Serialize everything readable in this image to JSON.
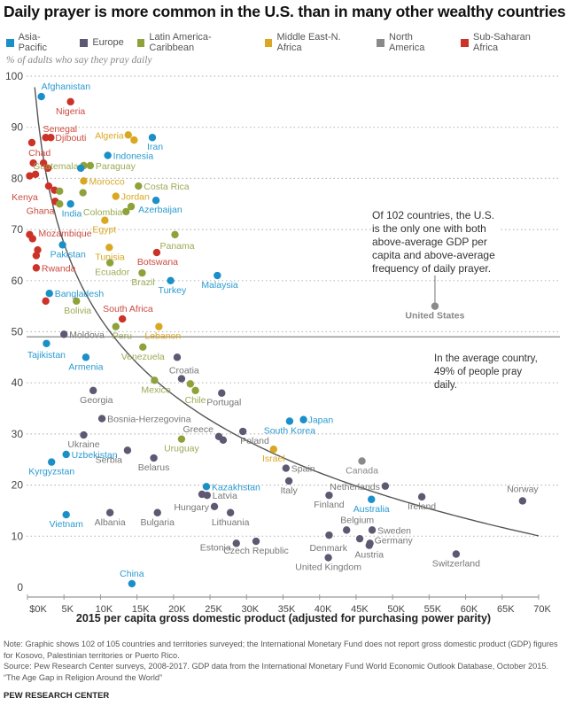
{
  "title": "Daily prayer is more common in the U.S. than in many other wealthy countries",
  "legend": [
    {
      "label": "Asia-Pacific",
      "color": "#1a8fc8"
    },
    {
      "label": "Europe",
      "color": "#5e5872"
    },
    {
      "label": "Latin America-Caribbean",
      "color": "#8ea23c"
    },
    {
      "label": "Middle East-N. Africa",
      "color": "#d9a722"
    },
    {
      "label": "North America",
      "color": "#8a8a8a"
    },
    {
      "label": "Sub-Saharan Africa",
      "color": "#cc3227"
    }
  ],
  "y_axis_caption": "% of adults who say they pray daily",
  "annotation_us": "Of 102 countries, the U.S. is the only one with both above-average GDP per capita and above-average frequency of daily prayer.",
  "annotation_avg": "In the average country, 49% of people pray daily.",
  "note": "Note: Graphic shows 102 of 105 countries and territories surveyed; the International Monetary Fund does not report gross domestic product (GDP) figures for Kosovo, Palestinian territories or Puerto Rico.",
  "source": "Source: Pew Research Center surveys, 2008-2017. GDP data from the International Monetary Fund World Economic Outlook Database, October 2015.",
  "report": "“The Age Gap in Religion Around the World”",
  "brand": "PEW RESEARCH CENTER",
  "chart_data": {
    "type": "scatter",
    "title": "Daily prayer is more common in the U.S. than in many other wealthy countries",
    "xlabel": "2015 per capita gross domestic product (adjusted for purchasing power parity)",
    "ylabel": "% of adults who say they pray daily",
    "xlim": [
      0,
      70
    ],
    "ylim": [
      0,
      100
    ],
    "x_unit": "thousand USD",
    "x_ticks": [
      "$0K",
      "5K",
      "10K",
      "15K",
      "20K",
      "25K",
      "30K",
      "35K",
      "40K",
      "45K",
      "50K",
      "55K",
      "60K",
      "65K",
      "70K"
    ],
    "y_ticks": [
      "0",
      "10",
      "20",
      "30",
      "40",
      "50",
      "60",
      "70",
      "80",
      "90",
      "100"
    ],
    "grid": "horizontal dotted",
    "reference_line": {
      "label": "Average",
      "y": 49
    },
    "trend": "fitted decreasing curve",
    "regions": {
      "AP": "Asia-Pacific",
      "EU": "Europe",
      "LA": "Latin America-Caribbean",
      "ME": "Middle East-N. Africa",
      "NA": "North America",
      "SA": "Sub-Saharan Africa"
    },
    "points": [
      {
        "name": "Afghanistan",
        "region": "AP",
        "x": 1.9,
        "y": 96,
        "label": true
      },
      {
        "name": "Nigeria",
        "region": "SA",
        "x": 5.9,
        "y": 95,
        "label": true
      },
      {
        "name": "Senegal",
        "region": "SA",
        "x": 2.5,
        "y": 88,
        "label": true
      },
      {
        "name": "Djibouti",
        "region": "SA",
        "x": 3.2,
        "y": 88,
        "label": true
      },
      {
        "name": "",
        "region": "SA",
        "x": 0.6,
        "y": 87,
        "label": false
      },
      {
        "name": "Algeria",
        "region": "ME",
        "x": 13.8,
        "y": 88.5,
        "label": true
      },
      {
        "name": "",
        "region": "ME",
        "x": 14.6,
        "y": 87.5,
        "label": false
      },
      {
        "name": "Iran",
        "region": "AP",
        "x": 17.1,
        "y": 88,
        "label": true
      },
      {
        "name": "Chad",
        "region": "SA",
        "x": 2.2,
        "y": 83,
        "label": true
      },
      {
        "name": "",
        "region": "SA",
        "x": 0.8,
        "y": 83,
        "label": false
      },
      {
        "name": "",
        "region": "SA",
        "x": 2.8,
        "y": 82,
        "label": false
      },
      {
        "name": "Guatemala",
        "region": "LA",
        "x": 7.7,
        "y": 82.5,
        "label": true
      },
      {
        "name": "Indonesia",
        "region": "AP",
        "x": 11.0,
        "y": 84.5,
        "label": true
      },
      {
        "name": "Paraguay",
        "region": "LA",
        "x": 8.6,
        "y": 82.5,
        "label": true
      },
      {
        "name": "",
        "region": "AP",
        "x": 7.3,
        "y": 82,
        "label": false
      },
      {
        "name": "",
        "region": "SA",
        "x": 0.3,
        "y": 80.5,
        "label": false
      },
      {
        "name": "",
        "region": "SA",
        "x": 1.1,
        "y": 80.8,
        "label": false
      },
      {
        "name": "Morocco",
        "region": "ME",
        "x": 7.7,
        "y": 79.5,
        "label": true
      },
      {
        "name": "Costa Rica",
        "region": "LA",
        "x": 15.2,
        "y": 78.5,
        "label": true
      },
      {
        "name": "Kenya",
        "region": "SA",
        "x": 2.9,
        "y": 78.5,
        "label": true
      },
      {
        "name": "",
        "region": "SA",
        "x": 3.7,
        "y": 77.7,
        "label": false
      },
      {
        "name": "",
        "region": "LA",
        "x": 4.4,
        "y": 77.5,
        "label": false
      },
      {
        "name": "",
        "region": "LA",
        "x": 7.6,
        "y": 77.2,
        "label": false
      },
      {
        "name": "Jordan",
        "region": "ME",
        "x": 12.1,
        "y": 76.5,
        "label": true
      },
      {
        "name": "Azerbaijan",
        "region": "AP",
        "x": 17.6,
        "y": 75.7,
        "label": true
      },
      {
        "name": "Ghana",
        "region": "SA",
        "x": 3.8,
        "y": 75.5,
        "label": true
      },
      {
        "name": "",
        "region": "LA",
        "x": 4.4,
        "y": 75,
        "label": false
      },
      {
        "name": "India",
        "region": "AP",
        "x": 5.9,
        "y": 75,
        "label": true
      },
      {
        "name": "Colombia",
        "region": "LA",
        "x": 13.5,
        "y": 73.5,
        "label": true
      },
      {
        "name": "",
        "region": "LA",
        "x": 14.2,
        "y": 74.5,
        "label": false
      },
      {
        "name": "Egypt",
        "region": "ME",
        "x": 10.6,
        "y": 71.8,
        "label": true
      },
      {
        "name": "Mozambique",
        "region": "SA",
        "x": 0.3,
        "y": 69,
        "label": true
      },
      {
        "name": "",
        "region": "SA",
        "x": 0.7,
        "y": 68.2,
        "label": false
      },
      {
        "name": "Panama",
        "region": "LA",
        "x": 20.2,
        "y": 69,
        "label": true
      },
      {
        "name": "Pakistan",
        "region": "AP",
        "x": 4.8,
        "y": 67,
        "label": true
      },
      {
        "name": "",
        "region": "SA",
        "x": 1.4,
        "y": 66,
        "label": false
      },
      {
        "name": "",
        "region": "SA",
        "x": 1.2,
        "y": 64.9,
        "label": false
      },
      {
        "name": "Tunisia",
        "region": "ME",
        "x": 11.2,
        "y": 66.5,
        "label": true
      },
      {
        "name": "Botswana",
        "region": "SA",
        "x": 17.7,
        "y": 65.5,
        "label": true
      },
      {
        "name": "Rwanda",
        "region": "SA",
        "x": 1.2,
        "y": 62.5,
        "label": true
      },
      {
        "name": "Ecuador",
        "region": "LA",
        "x": 11.3,
        "y": 63.5,
        "label": true
      },
      {
        "name": "Brazil",
        "region": "LA",
        "x": 15.7,
        "y": 61.5,
        "label": true
      },
      {
        "name": "Turkey",
        "region": "AP",
        "x": 19.6,
        "y": 60,
        "label": true
      },
      {
        "name": "Malaysia",
        "region": "AP",
        "x": 26.0,
        "y": 61,
        "label": true
      },
      {
        "name": "Bangladesh",
        "region": "AP",
        "x": 3.0,
        "y": 57.5,
        "label": true
      },
      {
        "name": "",
        "region": "SA",
        "x": 2.5,
        "y": 56,
        "label": false
      },
      {
        "name": "Bolivia",
        "region": "LA",
        "x": 6.7,
        "y": 56,
        "label": true
      },
      {
        "name": "South Africa",
        "region": "SA",
        "x": 13.0,
        "y": 52.5,
        "label": true
      },
      {
        "name": "Peru",
        "region": "LA",
        "x": 12.1,
        "y": 51,
        "label": true
      },
      {
        "name": "Lebanon",
        "region": "ME",
        "x": 18.0,
        "y": 51,
        "label": true
      },
      {
        "name": "Moldova",
        "region": "EU",
        "x": 5.0,
        "y": 49.5,
        "label": true
      },
      {
        "name": "United States",
        "region": "NA",
        "x": 55.8,
        "y": 55,
        "label": true
      },
      {
        "name": "Tajikistan",
        "region": "AP",
        "x": 2.6,
        "y": 47.7,
        "label": true
      },
      {
        "name": "Venezuela",
        "region": "LA",
        "x": 15.8,
        "y": 47,
        "label": true
      },
      {
        "name": "Armenia",
        "region": "AP",
        "x": 8.0,
        "y": 45,
        "label": true
      },
      {
        "name": "",
        "region": "EU",
        "x": 20.5,
        "y": 45,
        "label": false
      },
      {
        "name": "Croatia",
        "region": "EU",
        "x": 21.1,
        "y": 40.8,
        "label": true
      },
      {
        "name": "Mexico",
        "region": "LA",
        "x": 17.4,
        "y": 40.5,
        "label": true
      },
      {
        "name": "",
        "region": "LA",
        "x": 22.3,
        "y": 39.8,
        "label": false
      },
      {
        "name": "Chile",
        "region": "LA",
        "x": 23.0,
        "y": 38.5,
        "label": true
      },
      {
        "name": "Portulal",
        "region": "EU",
        "x": 26.6,
        "y": 38,
        "label": true
      },
      {
        "name": "Georgia",
        "region": "EU",
        "x": 9.0,
        "y": 38.5,
        "label": true
      },
      {
        "name": "Bosnia-Herzegovina",
        "region": "EU",
        "x": 10.2,
        "y": 33,
        "label": true
      },
      {
        "name": "Japan",
        "region": "AP",
        "x": 37.8,
        "y": 32.8,
        "label": true
      },
      {
        "name": "South Korea",
        "region": "AP",
        "x": 35.9,
        "y": 32.5,
        "label": true
      },
      {
        "name": "Greece",
        "region": "EU",
        "x": 26.2,
        "y": 29.5,
        "label": true
      },
      {
        "name": "",
        "region": "EU",
        "x": 26.8,
        "y": 28.8,
        "label": false
      },
      {
        "name": "Poland",
        "region": "EU",
        "x": 29.5,
        "y": 30.5,
        "label": true
      },
      {
        "name": "Ukraine",
        "region": "EU",
        "x": 7.7,
        "y": 29.8,
        "label": true
      },
      {
        "name": "Uruguay",
        "region": "LA",
        "x": 21.1,
        "y": 29,
        "label": true
      },
      {
        "name": "Israel",
        "region": "ME",
        "x": 33.7,
        "y": 27,
        "label": true
      },
      {
        "name": "Uzbekistan",
        "region": "AP",
        "x": 5.3,
        "y": 26,
        "label": true
      },
      {
        "name": "Serbia",
        "region": "EU",
        "x": 13.7,
        "y": 26.8,
        "label": true
      },
      {
        "name": "Belarus",
        "region": "EU",
        "x": 17.3,
        "y": 25.3,
        "label": true
      },
      {
        "name": "Kyrgyzstan",
        "region": "AP",
        "x": 3.3,
        "y": 24.5,
        "label": true
      },
      {
        "name": "Canada",
        "region": "NA",
        "x": 45.8,
        "y": 24.7,
        "label": true
      },
      {
        "name": "Spain",
        "region": "EU",
        "x": 35.4,
        "y": 23.3,
        "label": true
      },
      {
        "name": "Italy",
        "region": "EU",
        "x": 35.8,
        "y": 20.8,
        "label": true
      },
      {
        "name": "Netherlands",
        "region": "EU",
        "x": 49.0,
        "y": 19.8,
        "label": true
      },
      {
        "name": "Kazakhstan",
        "region": "AP",
        "x": 24.5,
        "y": 19.7,
        "label": true
      },
      {
        "name": "",
        "region": "EU",
        "x": 23.9,
        "y": 18.2,
        "label": false
      },
      {
        "name": "Latvia",
        "region": "EU",
        "x": 24.6,
        "y": 18,
        "label": true
      },
      {
        "name": "Ireland",
        "region": "EU",
        "x": 54.0,
        "y": 17.7,
        "label": true
      },
      {
        "name": "Norway",
        "region": "EU",
        "x": 67.8,
        "y": 16.9,
        "label": true
      },
      {
        "name": "Finland",
        "region": "EU",
        "x": 41.3,
        "y": 18,
        "label": true
      },
      {
        "name": "Australia",
        "region": "AP",
        "x": 47.1,
        "y": 17.2,
        "label": true
      },
      {
        "name": "Hungary",
        "region": "EU",
        "x": 25.6,
        "y": 15.8,
        "label": true
      },
      {
        "name": "Vietnam",
        "region": "AP",
        "x": 5.3,
        "y": 14.2,
        "label": true
      },
      {
        "name": "Albania",
        "region": "EU",
        "x": 11.3,
        "y": 14.6,
        "label": true
      },
      {
        "name": "Bulgaria",
        "region": "EU",
        "x": 17.8,
        "y": 14.6,
        "label": true
      },
      {
        "name": "Lithuania",
        "region": "EU",
        "x": 27.8,
        "y": 14.6,
        "label": true
      },
      {
        "name": "Belgium",
        "region": "EU",
        "x": 43.7,
        "y": 11.2,
        "label": true
      },
      {
        "name": "Sweden",
        "region": "EU",
        "x": 47.2,
        "y": 11.2,
        "label": true
      },
      {
        "name": "",
        "region": "EU",
        "x": 41.3,
        "y": 10.2,
        "label": false
      },
      {
        "name": "Denmark",
        "region": "EU",
        "x": 45.5,
        "y": 9.5,
        "label": true
      },
      {
        "name": "Germany",
        "region": "EU",
        "x": 46.9,
        "y": 8.6,
        "label": true
      },
      {
        "name": "Austria",
        "region": "EU",
        "x": 46.8,
        "y": 8.2,
        "label": true
      },
      {
        "name": "Estonia",
        "region": "EU",
        "x": 28.6,
        "y": 8.6,
        "label": true
      },
      {
        "name": "Czech Republic",
        "region": "EU",
        "x": 31.3,
        "y": 9.0,
        "label": true
      },
      {
        "name": "Switzerland",
        "region": "EU",
        "x": 58.7,
        "y": 6.5,
        "label": true
      },
      {
        "name": "United Kingdom",
        "region": "EU",
        "x": 41.2,
        "y": 5.8,
        "label": true
      },
      {
        "name": "China",
        "region": "AP",
        "x": 14.3,
        "y": 0.7,
        "label": true
      }
    ]
  }
}
